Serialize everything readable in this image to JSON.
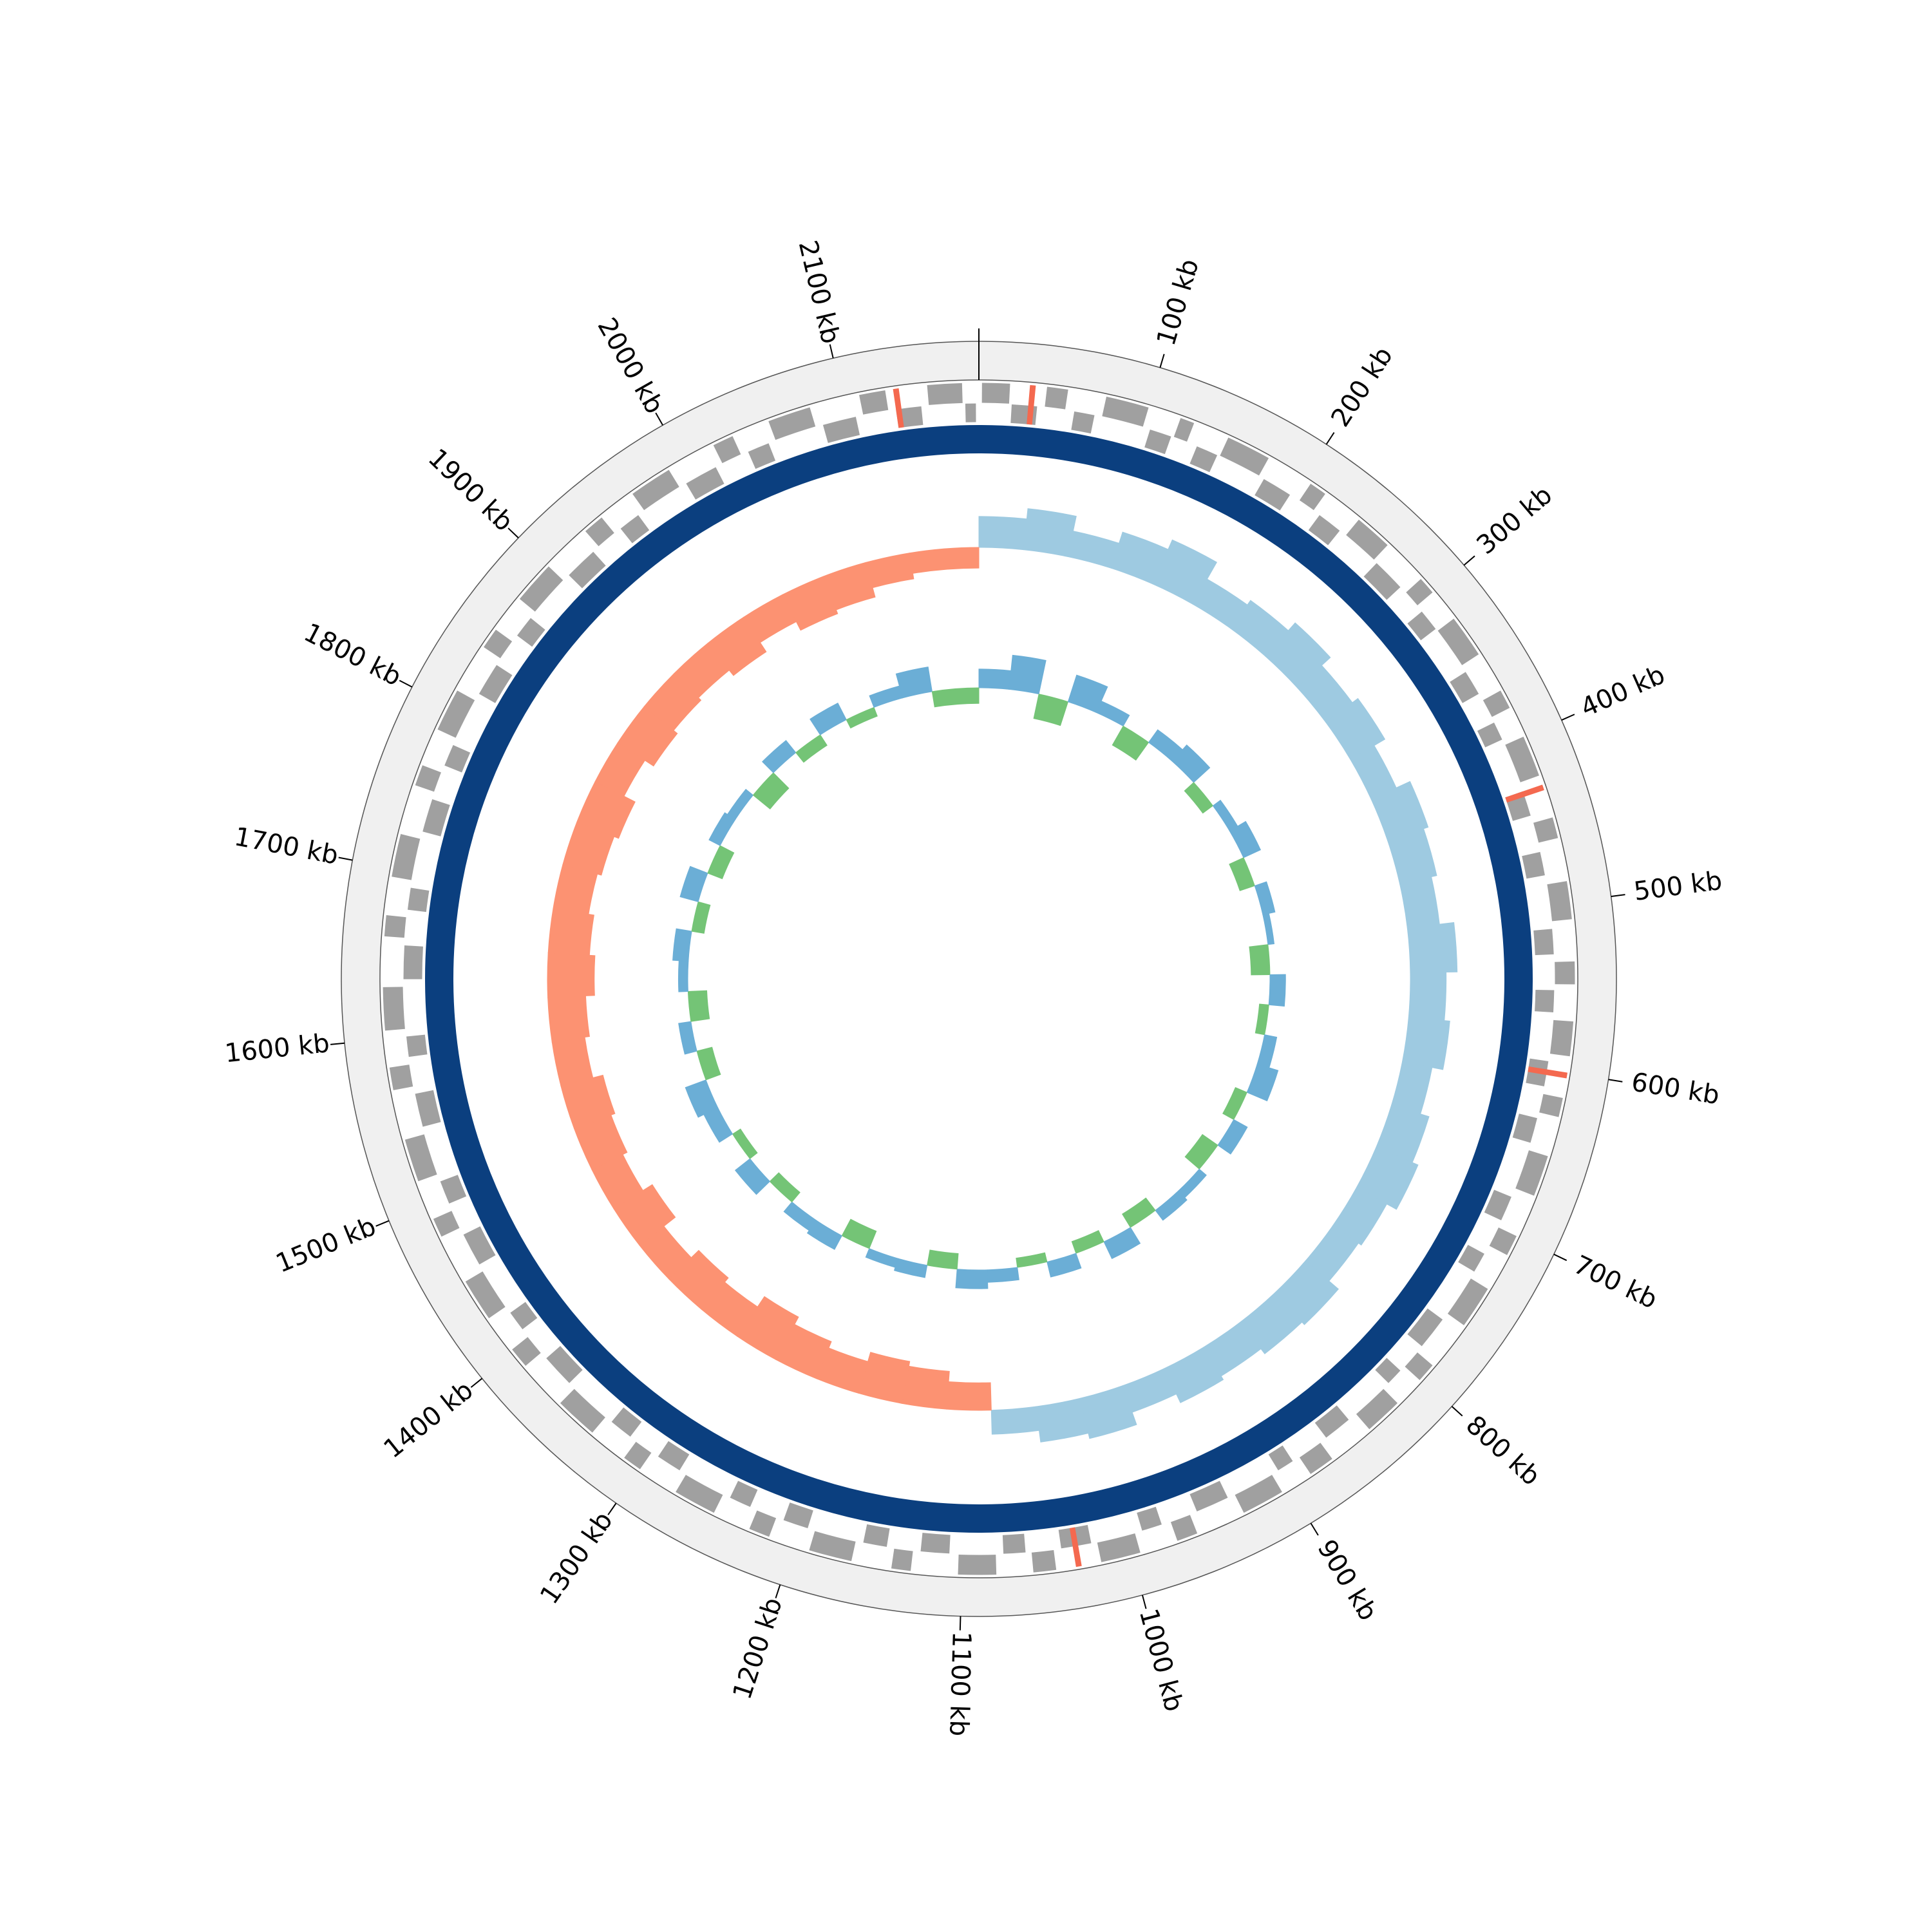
{
  "chart_data": {
    "type": "circos",
    "xlim": [
      0,
      2180
    ],
    "xticks": [
      {
        "value": 100,
        "label": "100 kb"
      },
      {
        "value": 200,
        "label": "200 kb"
      },
      {
        "value": 300,
        "label": "300 kb"
      },
      {
        "value": 400,
        "label": "400 kb"
      },
      {
        "value": 500,
        "label": "500 kb"
      },
      {
        "value": 600,
        "label": "600 kb"
      },
      {
        "value": 700,
        "label": "700 kb"
      },
      {
        "value": 800,
        "label": "800 kb"
      },
      {
        "value": 900,
        "label": "900 kb"
      },
      {
        "value": 1000,
        "label": "1000 kb"
      },
      {
        "value": 1100,
        "label": "1100 kb"
      },
      {
        "value": 1200,
        "label": "1200 kb"
      },
      {
        "value": 1300,
        "label": "1300 kb"
      },
      {
        "value": 1400,
        "label": "1400 kb"
      },
      {
        "value": 1500,
        "label": "1500 kb"
      },
      {
        "value": 1600,
        "label": "1600 kb"
      },
      {
        "value": 1700,
        "label": "1700 kb"
      },
      {
        "value": 1800,
        "label": "1800 kb"
      },
      {
        "value": 1900,
        "label": "1900 kb"
      },
      {
        "value": 2000,
        "label": "2000 kb"
      },
      {
        "value": 2100,
        "label": "2100 kb"
      }
    ],
    "genes": {
      "color": "#a0a0a0",
      "rna_color": "#f4694f",
      "forward": [
        [
          2,
          18
        ],
        [
          40,
          52
        ],
        [
          75,
          100
        ],
        [
          120,
          128
        ],
        [
          150,
          176
        ],
        [
          205,
          215
        ],
        [
          240,
          262
        ],
        [
          290,
          300
        ],
        [
          320,
          345
        ],
        [
          370,
          381
        ],
        [
          400,
          424
        ],
        [
          450,
          462
        ],
        [
          488,
          510
        ],
        [
          535,
          548
        ],
        [
          570,
          590
        ],
        [
          615,
          626
        ],
        [
          650,
          674
        ],
        [
          700,
          712
        ],
        [
          735,
          760
        ],
        [
          790,
          801
        ],
        [
          820,
          842
        ],
        [
          870,
          885
        ],
        [
          905,
          930
        ],
        [
          960,
          972
        ],
        [
          995,
          1018
        ],
        [
          1045,
          1058
        ],
        [
          1080,
          1102
        ],
        [
          1130,
          1141
        ],
        [
          1165,
          1190
        ],
        [
          1215,
          1227
        ],
        [
          1250,
          1275
        ],
        [
          1300,
          1311
        ],
        [
          1335,
          1360
        ],
        [
          1390,
          1402
        ],
        [
          1425,
          1450
        ],
        [
          1480,
          1491
        ],
        [
          1515,
          1540
        ],
        [
          1570,
          1583
        ],
        [
          1605,
          1630
        ],
        [
          1660,
          1672
        ],
        [
          1695,
          1720
        ],
        [
          1750,
          1762
        ],
        [
          1785,
          1810
        ],
        [
          1840,
          1852
        ],
        [
          1875,
          1900
        ],
        [
          1930,
          1942
        ],
        [
          1965,
          1990
        ],
        [
          2020,
          2032
        ],
        [
          2055,
          2080
        ],
        [
          2110,
          2125
        ],
        [
          2150,
          2170
        ]
      ],
      "reverse": [
        [
          20,
          35
        ],
        [
          58,
          70
        ],
        [
          105,
          118
        ],
        [
          135,
          148
        ],
        [
          180,
          198
        ],
        [
          220,
          235
        ],
        [
          265,
          285
        ],
        [
          305,
          318
        ],
        [
          350,
          365
        ],
        [
          385,
          396
        ],
        [
          430,
          445
        ],
        [
          468,
          482
        ],
        [
          515,
          530
        ],
        [
          552,
          565
        ],
        [
          595,
          610
        ],
        [
          630,
          645
        ],
        [
          680,
          695
        ],
        [
          718,
          730
        ],
        [
          765,
          785
        ],
        [
          805,
          815
        ],
        [
          848,
          865
        ],
        [
          890,
          900
        ],
        [
          935,
          955
        ],
        [
          978,
          990
        ],
        [
          1022,
          1040
        ],
        [
          1062,
          1075
        ],
        [
          1108,
          1125
        ],
        [
          1146,
          1160
        ],
        [
          1195,
          1210
        ],
        [
          1232,
          1245
        ],
        [
          1280,
          1295
        ],
        [
          1316,
          1330
        ],
        [
          1365,
          1385
        ],
        [
          1408,
          1420
        ],
        [
          1455,
          1475
        ],
        [
          1496,
          1510
        ],
        [
          1545,
          1565
        ],
        [
          1588,
          1600
        ],
        [
          1635,
          1655
        ],
        [
          1677,
          1690
        ],
        [
          1725,
          1745
        ],
        [
          1767,
          1780
        ],
        [
          1815,
          1835
        ],
        [
          1857,
          1870
        ],
        [
          1905,
          1925
        ],
        [
          1947,
          1960
        ],
        [
          1995,
          2015
        ],
        [
          2037,
          2050
        ],
        [
          2085,
          2105
        ],
        [
          2130,
          2145
        ],
        [
          2172,
          2178
        ]
      ],
      "rna": [
        [
          30,
          33
        ],
        [
          430,
          433
        ],
        [
          600,
          603
        ],
        [
          1030,
          1033
        ],
        [
          2130,
          2133
        ]
      ]
    },
    "x": [
      0,
      36,
      72,
      108,
      144,
      180,
      216,
      252,
      288,
      324,
      360,
      396,
      432,
      468,
      504,
      540,
      576,
      612,
      648,
      684,
      720,
      756,
      792,
      828,
      864,
      900,
      936,
      972,
      1008,
      1044,
      1080,
      1116,
      1152,
      1188,
      1224,
      1260,
      1296,
      1332,
      1368,
      1404,
      1440,
      1476,
      1512,
      1548,
      1584,
      1620,
      1656,
      1692,
      1728,
      1764,
      1800,
      1836,
      1872,
      1908,
      1944,
      1980,
      2016,
      2052,
      2088,
      2124
    ],
    "outer_track": {
      "ylim": [
        -100,
        100
      ],
      "pos_color": "#9ecae1",
      "neg_color": "#fc9272",
      "values": [
        45,
        60,
        38,
        55,
        70,
        42,
        50,
        65,
        48,
        58,
        40,
        62,
        55,
        47,
        68,
        52,
        60,
        44,
        57,
        66,
        50,
        45,
        63,
        58,
        49,
        55,
        41,
        60,
        52,
        35,
        -40,
        -55,
        -62,
        -48,
        -58,
        -70,
        -52,
        -60,
        -45,
        -66,
        -50,
        -57,
        -63,
        -48,
        -55,
        -68,
        -60,
        -52,
        -58,
        -65,
        -47,
        -62,
        -55,
        -50,
        -60,
        -44,
        -58,
        -52,
        -38,
        -30
      ]
    },
    "inner_track": {
      "ylim": [
        -100,
        100
      ],
      "pos_color": "#6baed6",
      "neg_color": "#74c476",
      "values": [
        30,
        55,
        -40,
        45,
        20,
        -35,
        25,
        35,
        -20,
        15,
        30,
        -25,
        20,
        10,
        -30,
        25,
        -15,
        20,
        35,
        -20,
        25,
        -30,
        15,
        20,
        -25,
        30,
        -20,
        25,
        -15,
        20,
        30,
        -25,
        20,
        15,
        -30,
        25,
        20,
        -20,
        30,
        -15,
        25,
        35,
        -25,
        20,
        -30,
        15,
        25,
        -20,
        30,
        -25,
        20,
        15,
        -35,
        25,
        -20,
        30,
        -15,
        20,
        40,
        -25
      ]
    }
  }
}
